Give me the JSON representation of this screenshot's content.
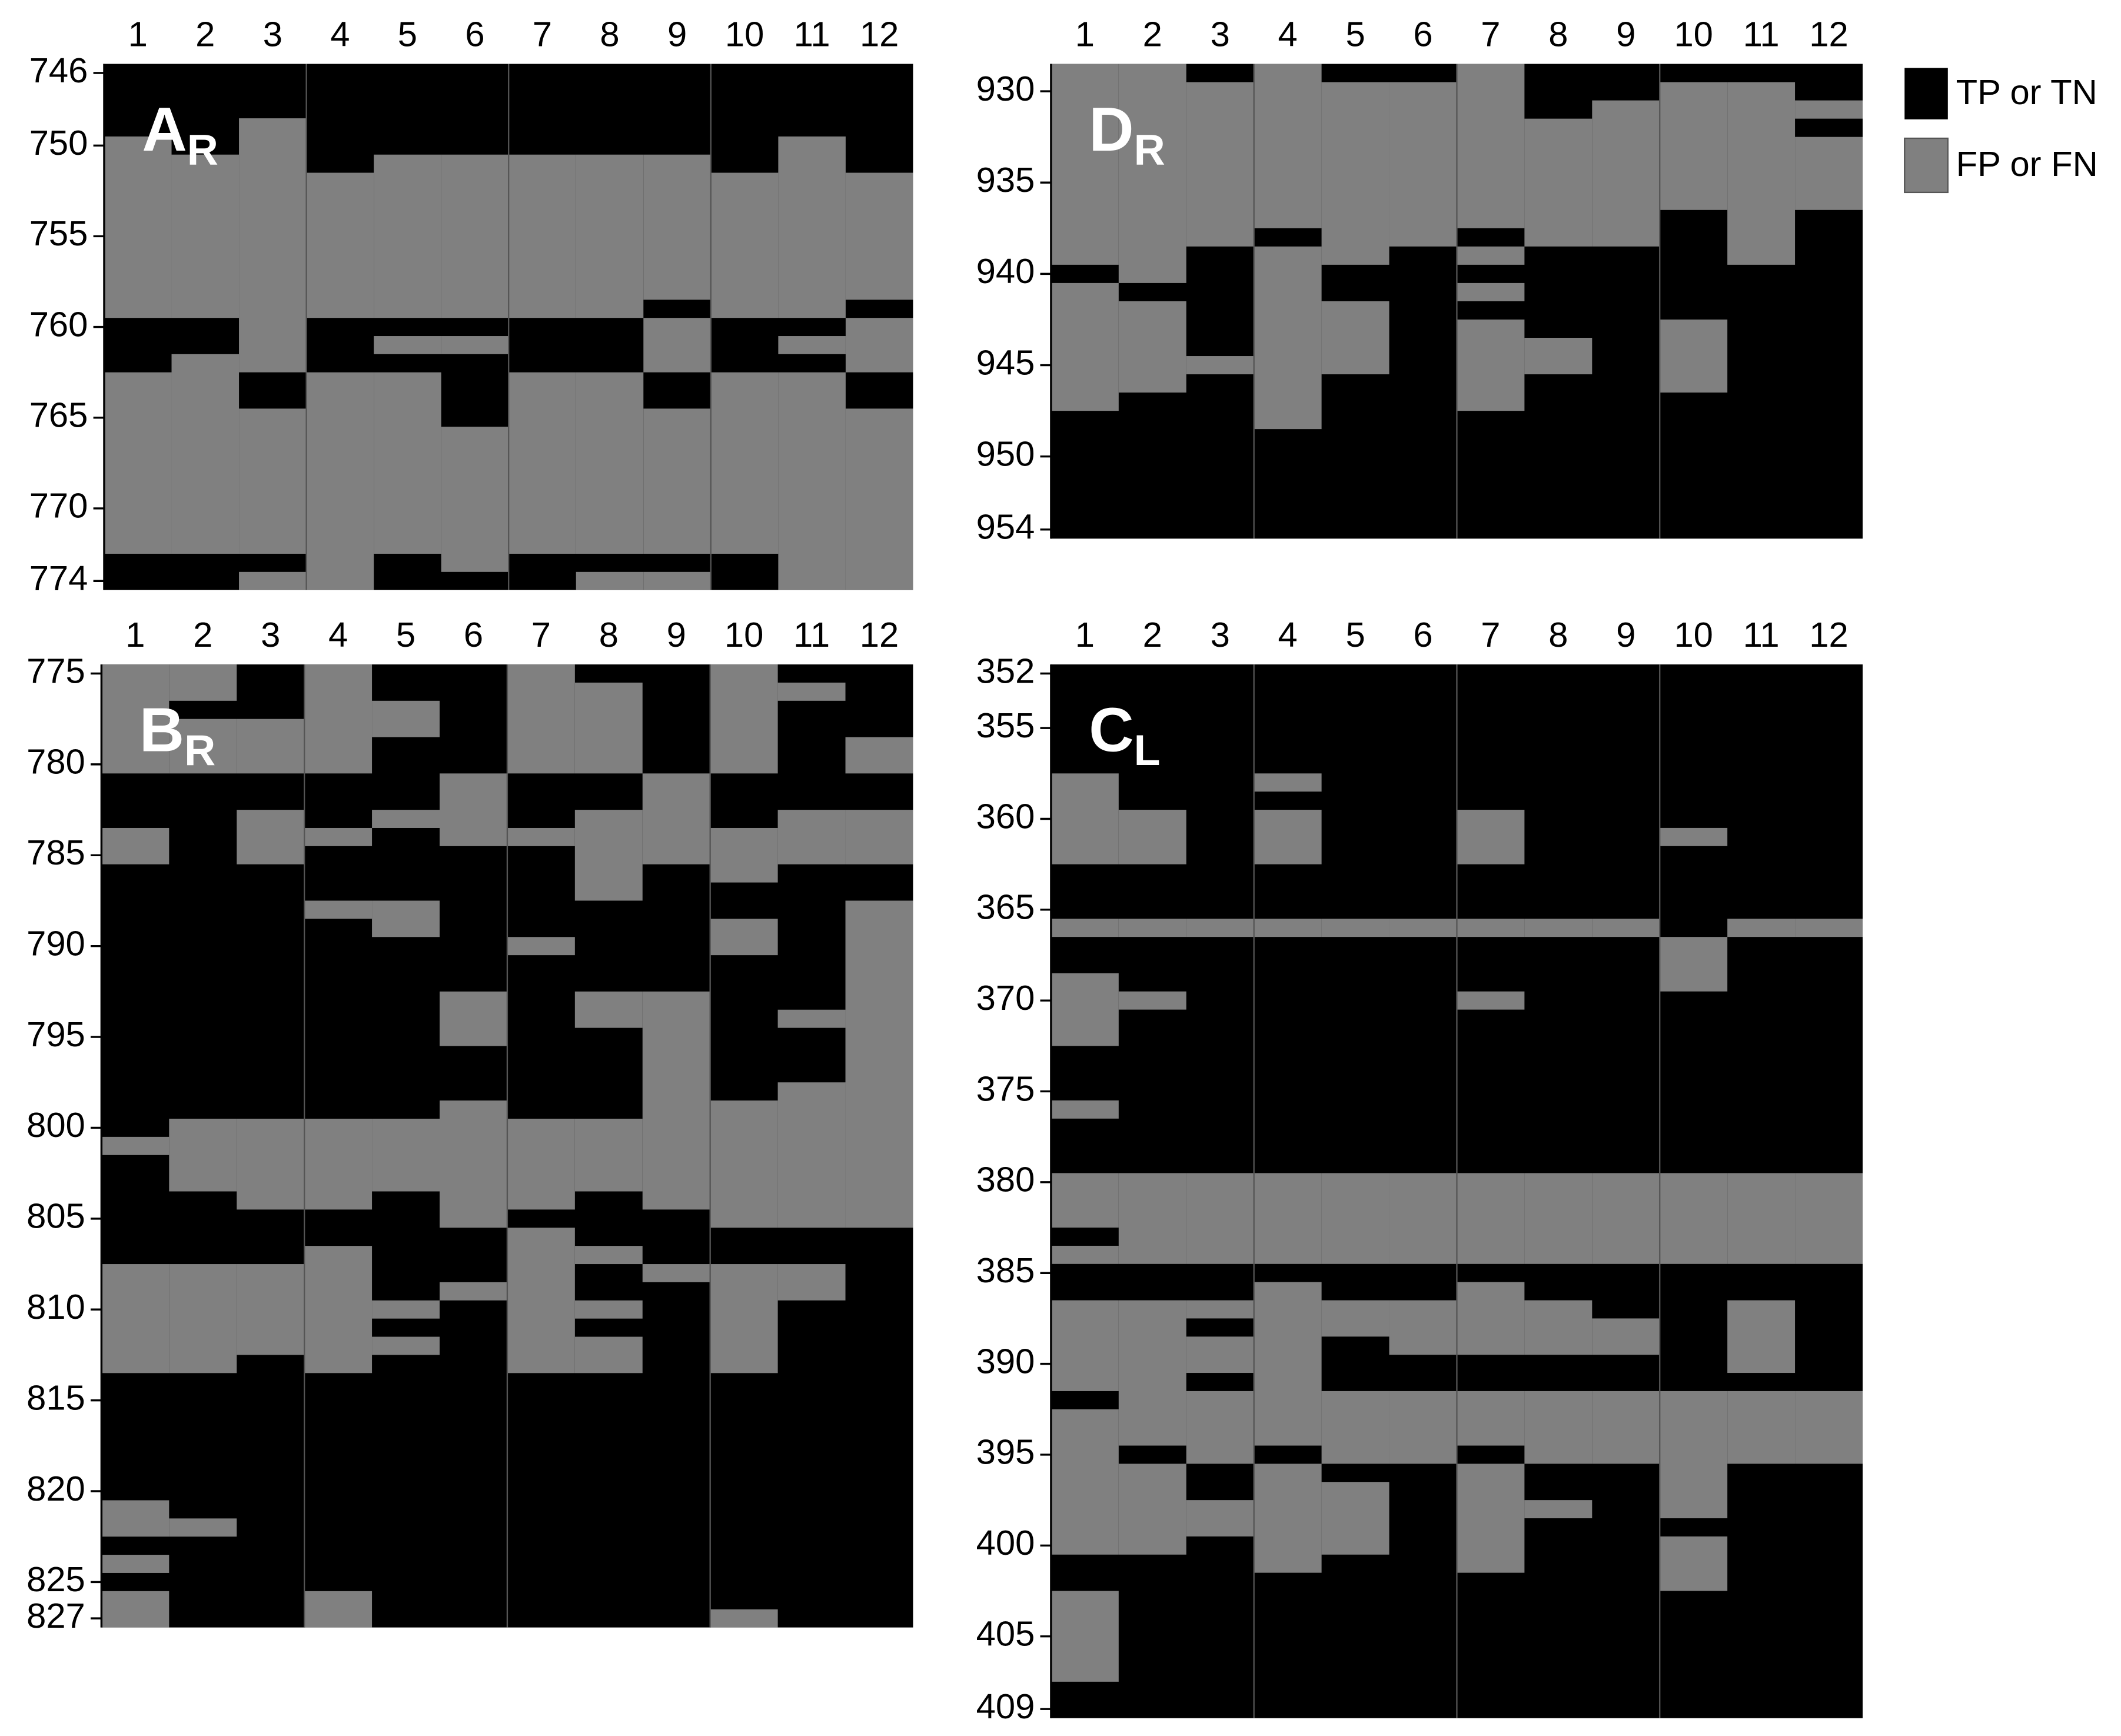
{
  "legend": [
    {
      "label": "TP or TN",
      "color": "#000000"
    },
    {
      "label": "FP or FN",
      "color": "#808080"
    }
  ],
  "chart_data": [
    {
      "type": "heatmap",
      "title": "A",
      "title_subscript": "R",
      "categories": [
        1,
        2,
        3,
        4,
        5,
        6,
        7,
        8,
        9,
        10,
        11,
        12
      ],
      "ylim": [
        745.5,
        774.5
      ],
      "yticks": [
        746,
        750,
        755,
        760,
        765,
        770,
        774
      ],
      "background": "#000000",
      "color": "#808080",
      "segments": [
        [
          [
            750,
            759
          ],
          [
            763,
            772
          ]
        ],
        [
          [
            751,
            759
          ],
          [
            762,
            772
          ]
        ],
        [
          [
            749,
            762
          ],
          [
            765,
            772
          ],
          [
            774,
            774
          ]
        ],
        [
          [
            752,
            759
          ],
          [
            763,
            774
          ]
        ],
        [
          [
            751,
            759
          ],
          [
            761,
            761
          ],
          [
            763,
            772
          ]
        ],
        [
          [
            751,
            759
          ],
          [
            761,
            761
          ],
          [
            766,
            773
          ]
        ],
        [
          [
            751,
            759
          ],
          [
            763,
            772
          ]
        ],
        [
          [
            751,
            759
          ],
          [
            763,
            772
          ],
          [
            774,
            774
          ]
        ],
        [
          [
            751,
            758
          ],
          [
            760,
            762
          ],
          [
            765,
            772
          ],
          [
            774,
            774
          ]
        ],
        [
          [
            752,
            759
          ],
          [
            763,
            772
          ]
        ],
        [
          [
            750,
            759
          ],
          [
            761,
            761
          ],
          [
            763,
            774
          ]
        ],
        [
          [
            752,
            758
          ],
          [
            760,
            762
          ],
          [
            765,
            774
          ]
        ]
      ]
    },
    {
      "type": "heatmap",
      "title": "D",
      "title_subscript": "R",
      "categories": [
        1,
        2,
        3,
        4,
        5,
        6,
        7,
        8,
        9,
        10,
        11,
        12
      ],
      "ylim": [
        928.5,
        954.5
      ],
      "yticks": [
        930,
        935,
        940,
        945,
        950,
        954
      ],
      "background": "#000000",
      "color": "#808080",
      "segments": [
        [
          [
            929,
            939
          ],
          [
            941,
            947
          ]
        ],
        [
          [
            929,
            940
          ],
          [
            942,
            946
          ]
        ],
        [
          [
            930,
            938
          ],
          [
            945,
            945
          ]
        ],
        [
          [
            929,
            937
          ],
          [
            939,
            948
          ]
        ],
        [
          [
            930,
            939
          ],
          [
            942,
            945
          ]
        ],
        [
          [
            930,
            938
          ]
        ],
        [
          [
            929,
            937
          ],
          [
            939,
            939
          ],
          [
            941,
            941
          ],
          [
            943,
            947
          ]
        ],
        [
          [
            932,
            938
          ],
          [
            944,
            945
          ]
        ],
        [
          [
            931,
            938
          ]
        ],
        [
          [
            930,
            936
          ],
          [
            943,
            946
          ]
        ],
        [
          [
            930,
            939
          ]
        ],
        [
          [
            931,
            931
          ],
          [
            933,
            936
          ]
        ]
      ]
    },
    {
      "type": "heatmap",
      "title": "B",
      "title_subscript": "R",
      "categories": [
        1,
        2,
        3,
        4,
        5,
        6,
        7,
        8,
        9,
        10,
        11,
        12
      ],
      "ylim": [
        774.5,
        827.5
      ],
      "yticks": [
        775,
        780,
        785,
        790,
        795,
        800,
        805,
        810,
        815,
        820,
        825,
        827
      ],
      "background": "#000000",
      "color": "#808080",
      "segments": [
        [
          [
            775,
            780
          ],
          [
            784,
            785
          ],
          [
            801,
            801
          ],
          [
            808,
            813
          ],
          [
            821,
            822
          ],
          [
            824,
            824
          ],
          [
            826,
            827
          ]
        ],
        [
          [
            775,
            776
          ],
          [
            778,
            780
          ],
          [
            800,
            803
          ],
          [
            808,
            813
          ],
          [
            822,
            822
          ]
        ],
        [
          [
            778,
            780
          ],
          [
            783,
            785
          ],
          [
            800,
            804
          ],
          [
            808,
            812
          ]
        ],
        [
          [
            775,
            780
          ],
          [
            784,
            784
          ],
          [
            788,
            788
          ],
          [
            800,
            804
          ],
          [
            807,
            813
          ],
          [
            826,
            827
          ]
        ],
        [
          [
            777,
            778
          ],
          [
            783,
            783
          ],
          [
            788,
            789
          ],
          [
            800,
            803
          ],
          [
            810,
            810
          ],
          [
            812,
            812
          ]
        ],
        [
          [
            781,
            784
          ],
          [
            793,
            795
          ],
          [
            799,
            805
          ],
          [
            809,
            809
          ]
        ],
        [
          [
            775,
            780
          ],
          [
            784,
            784
          ],
          [
            790,
            790
          ],
          [
            800,
            804
          ],
          [
            806,
            813
          ]
        ],
        [
          [
            776,
            780
          ],
          [
            783,
            787
          ],
          [
            793,
            794
          ],
          [
            800,
            803
          ],
          [
            807,
            807
          ],
          [
            810,
            810
          ],
          [
            812,
            813
          ]
        ],
        [
          [
            781,
            785
          ],
          [
            793,
            804
          ],
          [
            808,
            808
          ]
        ],
        [
          [
            775,
            780
          ],
          [
            784,
            786
          ],
          [
            789,
            790
          ],
          [
            799,
            805
          ],
          [
            808,
            813
          ],
          [
            827,
            827
          ]
        ],
        [
          [
            776,
            776
          ],
          [
            783,
            785
          ],
          [
            794,
            794
          ],
          [
            798,
            805
          ],
          [
            808,
            809
          ]
        ],
        [
          [
            779,
            780
          ],
          [
            783,
            785
          ],
          [
            788,
            805
          ]
        ]
      ]
    },
    {
      "type": "heatmap",
      "title": "C",
      "title_subscript": "L",
      "categories": [
        1,
        2,
        3,
        4,
        5,
        6,
        7,
        8,
        9,
        10,
        11,
        12
      ],
      "ylim": [
        351.5,
        409.5
      ],
      "yticks": [
        352,
        355,
        360,
        365,
        370,
        375,
        380,
        385,
        390,
        395,
        400,
        405,
        409
      ],
      "background": "#000000",
      "color": "#808080",
      "segments": [
        [
          [
            358,
            362
          ],
          [
            366,
            366
          ],
          [
            369,
            372
          ],
          [
            376,
            376
          ],
          [
            380,
            382
          ],
          [
            384,
            384
          ],
          [
            387,
            391
          ],
          [
            393,
            400
          ],
          [
            403,
            407
          ]
        ],
        [
          [
            360,
            362
          ],
          [
            366,
            366
          ],
          [
            370,
            370
          ],
          [
            380,
            384
          ],
          [
            387,
            394
          ],
          [
            396,
            400
          ]
        ],
        [
          [
            366,
            366
          ],
          [
            380,
            384
          ],
          [
            387,
            387
          ],
          [
            389,
            390
          ],
          [
            392,
            395
          ],
          [
            398,
            399
          ]
        ],
        [
          [
            358,
            358
          ],
          [
            360,
            362
          ],
          [
            366,
            366
          ],
          [
            380,
            384
          ],
          [
            386,
            394
          ],
          [
            396,
            401
          ]
        ],
        [
          [
            366,
            366
          ],
          [
            380,
            384
          ],
          [
            387,
            388
          ],
          [
            392,
            395
          ],
          [
            397,
            400
          ]
        ],
        [
          [
            366,
            366
          ],
          [
            380,
            384
          ],
          [
            387,
            389
          ],
          [
            392,
            395
          ]
        ],
        [
          [
            360,
            362
          ],
          [
            366,
            366
          ],
          [
            370,
            370
          ],
          [
            380,
            384
          ],
          [
            386,
            389
          ],
          [
            392,
            394
          ],
          [
            396,
            401
          ]
        ],
        [
          [
            366,
            366
          ],
          [
            380,
            384
          ],
          [
            387,
            389
          ],
          [
            392,
            395
          ],
          [
            398,
            398
          ]
        ],
        [
          [
            366,
            366
          ],
          [
            380,
            384
          ],
          [
            388,
            389
          ],
          [
            392,
            395
          ]
        ],
        [
          [
            361,
            361
          ],
          [
            367,
            369
          ],
          [
            380,
            384
          ],
          [
            392,
            398
          ],
          [
            400,
            402
          ]
        ],
        [
          [
            366,
            366
          ],
          [
            380,
            384
          ],
          [
            387,
            390
          ],
          [
            392,
            395
          ]
        ],
        [
          [
            366,
            366
          ],
          [
            380,
            384
          ],
          [
            392,
            395
          ]
        ]
      ]
    }
  ]
}
